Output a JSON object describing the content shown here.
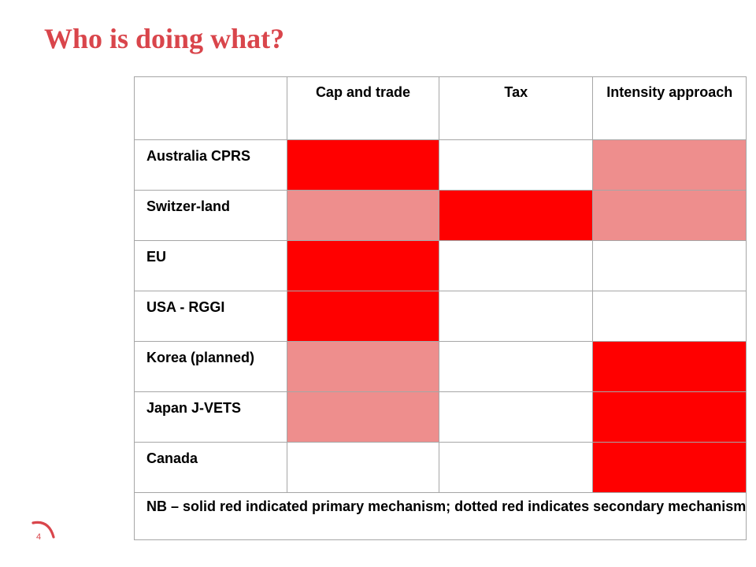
{
  "slide": {
    "title": "Who is doing what?",
    "page_number": "4",
    "logo_icon": "red-swoosh-arc-icon"
  },
  "colors": {
    "title": "#d9454b",
    "primary": "#ff0000",
    "secondary": "#ee8e8d",
    "none": "#ffffff",
    "grid": "#a6a6a6"
  },
  "table": {
    "headers": [
      "",
      "Cap and trade",
      "Tax",
      "Intensity approach"
    ],
    "rows": [
      {
        "label": "Australia CPRS",
        "cells": [
          "primary",
          "none",
          "secondary"
        ]
      },
      {
        "label": "Switzer-land",
        "cells": [
          "secondary",
          "primary",
          "secondary"
        ]
      },
      {
        "label": "EU",
        "cells": [
          "primary",
          "none",
          "none"
        ]
      },
      {
        "label": "USA - RGGI",
        "cells": [
          "primary",
          "none",
          "none"
        ]
      },
      {
        "label": "Korea (planned)",
        "cells": [
          "secondary",
          "none",
          "primary"
        ]
      },
      {
        "label": "Japan J-VETS",
        "cells": [
          "secondary",
          "none",
          "primary"
        ]
      },
      {
        "label": "Canada",
        "cells": [
          "none",
          "none",
          "primary"
        ]
      }
    ],
    "note": "NB – solid red indicated primary mechanism; dotted red indicates secondary mechanism"
  }
}
